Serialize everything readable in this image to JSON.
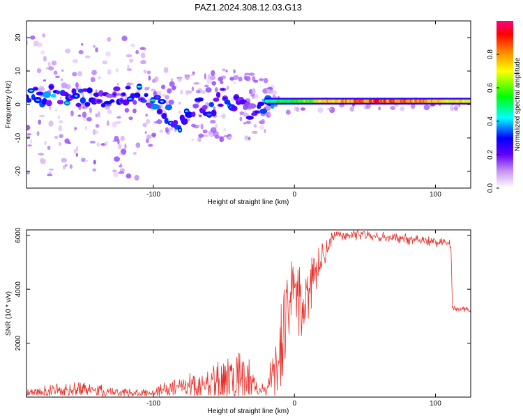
{
  "chart_data": [
    {
      "type": "heatmap",
      "title": "PAZ1.2024.308.12.03.G13",
      "xlabel": "Height of straight line (km)",
      "ylabel": "Frequency (Hz)",
      "xlim": [
        -190,
        125
      ],
      "ylim": [
        -25,
        25
      ],
      "x_ticks": [
        -100,
        0,
        100
      ],
      "y_ticks": [
        -20,
        -10,
        0,
        10,
        20
      ],
      "colorbar": {
        "label": "Normalized spectral amplitude",
        "range": [
          0,
          1
        ],
        "ticks": [
          0.0,
          0.2,
          0.4,
          0.6,
          0.8
        ],
        "colormap": [
          "#ffffff",
          "#c896f0",
          "#6400ff",
          "#0000ff",
          "#00ffff",
          "#00ff00",
          "#ffff00",
          "#ff8000",
          "#ff0000",
          "#ff0080"
        ]
      },
      "dominant_frequency_track": {
        "x": [
          -190,
          -170,
          -150,
          -130,
          -110,
          -100,
          -90,
          -80,
          -70,
          -60,
          -50,
          -40,
          -30,
          -20,
          -10,
          0,
          10,
          20,
          40,
          60,
          80,
          100,
          120
        ],
        "frequency": [
          2,
          3,
          2,
          2,
          3,
          1,
          -3,
          -6,
          0,
          -2,
          3,
          0,
          -2,
          1,
          1,
          1,
          1,
          1,
          1,
          1,
          1,
          1,
          1
        ],
        "amplitude": [
          0.3,
          0.4,
          0.35,
          0.3,
          0.3,
          0.35,
          0.4,
          0.35,
          0.3,
          0.35,
          0.35,
          0.3,
          0.3,
          0.45,
          0.5,
          0.55,
          0.6,
          0.75,
          0.8,
          0.85,
          0.8,
          0.75,
          0.7
        ]
      },
      "spread_hz": [
        [
          -190,
          22
        ],
        [
          -150,
          20
        ],
        [
          -110,
          22
        ],
        [
          -100,
          10
        ],
        [
          -80,
          12
        ],
        [
          -60,
          10
        ],
        [
          -40,
          12
        ],
        [
          -20,
          8
        ],
        [
          -10,
          3
        ],
        [
          0,
          2
        ],
        [
          50,
          1.5
        ],
        [
          125,
          1.5
        ]
      ]
    },
    {
      "type": "line",
      "title": "",
      "xlabel": "Height of straight line (km)",
      "ylabel": "SNR (10 * v/v)",
      "xlim": [
        -190,
        125
      ],
      "ylim": [
        0,
        6200
      ],
      "x_ticks": [
        -100,
        0,
        100
      ],
      "y_ticks": [
        2000,
        4000,
        6000
      ],
      "series": [
        {
          "color": "#e8302a",
          "x": [
            -190,
            -180,
            -170,
            -160,
            -150,
            -140,
            -130,
            -120,
            -110,
            -100,
            -90,
            -80,
            -70,
            -60,
            -50,
            -40,
            -30,
            -25,
            -20,
            -15,
            -10,
            -5,
            0,
            5,
            10,
            15,
            20,
            25,
            30,
            40,
            50,
            60,
            70,
            80,
            90,
            100,
            110,
            111,
            112,
            113,
            120,
            125
          ],
          "y": [
            150,
            200,
            230,
            250,
            280,
            250,
            200,
            150,
            100,
            150,
            300,
            400,
            500,
            550,
            650,
            700,
            600,
            200,
            200,
            700,
            1500,
            3400,
            4000,
            3500,
            4000,
            4500,
            5200,
            5800,
            6000,
            6000,
            6000,
            5950,
            5900,
            5850,
            5800,
            5750,
            5700,
            5500,
            3400,
            3300,
            3250,
            3250
          ],
          "noise": [
            150,
            250,
            250,
            300,
            300,
            250,
            200,
            200,
            200,
            250,
            300,
            400,
            550,
            700,
            900,
            1000,
            800,
            300,
            400,
            1200,
            1800,
            1200,
            1400,
            1400,
            1200,
            900,
            600,
            300,
            200,
            200,
            200,
            200,
            200,
            200,
            200,
            200,
            200,
            100,
            100,
            100,
            100,
            100
          ]
        }
      ]
    }
  ]
}
